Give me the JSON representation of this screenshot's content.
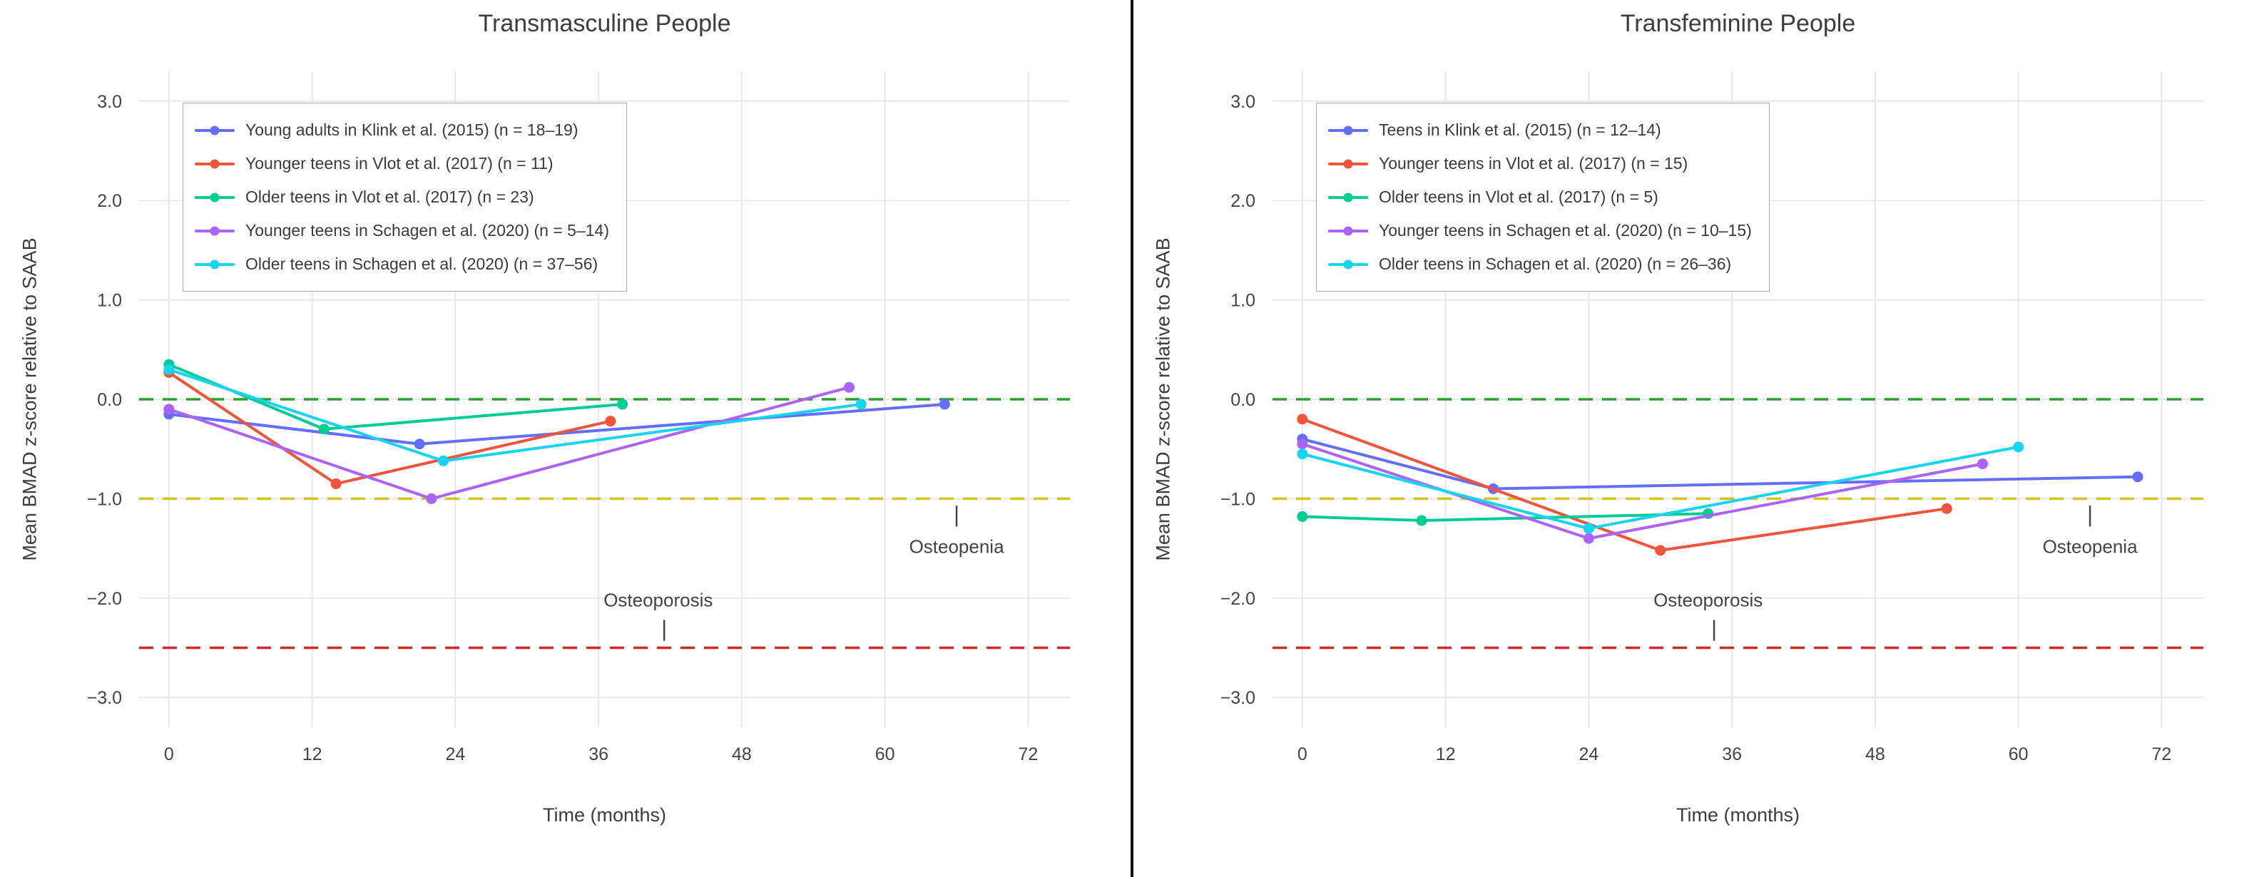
{
  "style": {
    "background": "#ffffff",
    "grid_color": "#e8e8e8",
    "text_color": "#444444",
    "legend_border_color": "#a9a9a9",
    "divider_color": "#111111"
  },
  "chart_data": [
    {
      "type": "line",
      "title": "Transmasculine People",
      "xlabel": "Time (months)",
      "ylabel": "Mean BMAD z-score relative to SAAB",
      "xlim": [
        -2.5,
        75.5
      ],
      "ylim": [
        -3.3,
        3.3
      ],
      "xticks": [
        0,
        12,
        24,
        36,
        48,
        60,
        72
      ],
      "yticks": [
        3,
        2,
        1,
        0,
        -1,
        -2,
        -3
      ],
      "ytick_labels": [
        "3.0",
        "2.0",
        "1.0",
        "0.0",
        "−1.0",
        "−2.0",
        "−3.0"
      ],
      "grid": true,
      "legend_position": "top-left",
      "reference_lines": [
        {
          "name": "saab-mean-line",
          "y": 0,
          "color": "#2ca02c"
        },
        {
          "name": "osteopenia-threshold-line",
          "y": -1,
          "color": "#d4c416"
        },
        {
          "name": "osteoporosis-threshold-line",
          "y": -2.5,
          "color": "#d62728"
        }
      ],
      "annotations": [
        {
          "text": "Osteopenia",
          "x": 66,
          "y": -1.48,
          "pointer": {
            "x": 66,
            "y1": -1.07,
            "y2": -1.28
          }
        },
        {
          "text": "Osteoporosis",
          "x": 41,
          "y": -2.02,
          "pointer": {
            "x": 41.5,
            "y1": -2.22,
            "y2": -2.43
          }
        }
      ],
      "series": [
        {
          "name": "Young adults in Klink et al. (2015) (n = 18–19)",
          "color": "#636efa",
          "x": [
            0,
            21,
            65
          ],
          "y": [
            -0.15,
            -0.45,
            -0.05
          ]
        },
        {
          "name": "Younger teens in Vlot et al. (2017) (n = 11)",
          "color": "#ef553b",
          "x": [
            0,
            14,
            37
          ],
          "y": [
            0.27,
            -0.85,
            -0.22
          ]
        },
        {
          "name": "Older teens in Vlot et al. (2017) (n = 23)",
          "color": "#00cc96",
          "x": [
            0,
            13,
            38
          ],
          "y": [
            0.35,
            -0.3,
            -0.05
          ]
        },
        {
          "name": "Younger teens in Schagen et al. (2020) (n = 5–14)",
          "color": "#ab63fa",
          "x": [
            0,
            22,
            57
          ],
          "y": [
            -0.1,
            -1.0,
            0.12
          ]
        },
        {
          "name": "Older teens in Schagen et al. (2020) (n = 37–56)",
          "color": "#19d3f3",
          "x": [
            0,
            23,
            58
          ],
          "y": [
            0.3,
            -0.62,
            -0.05
          ]
        }
      ]
    },
    {
      "type": "line",
      "title": "Transfeminine People",
      "xlabel": "Time (months)",
      "ylabel": "Mean BMAD z-score relative to SAAB",
      "xlim": [
        -2.5,
        75.5
      ],
      "ylim": [
        -3.3,
        3.3
      ],
      "xticks": [
        0,
        12,
        24,
        36,
        48,
        60,
        72
      ],
      "yticks": [
        3,
        2,
        1,
        0,
        -1,
        -2,
        -3
      ],
      "ytick_labels": [
        "3.0",
        "2.0",
        "1.0",
        "0.0",
        "−1.0",
        "−2.0",
        "−3.0"
      ],
      "grid": true,
      "legend_position": "top-left",
      "reference_lines": [
        {
          "name": "saab-mean-line",
          "y": 0,
          "color": "#2ca02c"
        },
        {
          "name": "osteopenia-threshold-line",
          "y": -1,
          "color": "#d4c416"
        },
        {
          "name": "osteoporosis-threshold-line",
          "y": -2.5,
          "color": "#d62728"
        }
      ],
      "annotations": [
        {
          "text": "Osteopenia",
          "x": 66,
          "y": -1.48,
          "pointer": {
            "x": 66,
            "y1": -1.07,
            "y2": -1.28
          }
        },
        {
          "text": "Osteoporosis",
          "x": 34,
          "y": -2.02,
          "pointer": {
            "x": 34.5,
            "y1": -2.22,
            "y2": -2.43
          }
        }
      ],
      "series": [
        {
          "name": "Teens in Klink et al. (2015) (n = 12–14)",
          "color": "#636efa",
          "x": [
            0,
            16,
            70
          ],
          "y": [
            -0.4,
            -0.9,
            -0.78
          ]
        },
        {
          "name": "Younger teens in Vlot et al. (2017) (n = 15)",
          "color": "#ef553b",
          "x": [
            0,
            30,
            54
          ],
          "y": [
            -0.2,
            -1.52,
            -1.1
          ]
        },
        {
          "name": "Older teens in Vlot et al. (2017) (n = 5)",
          "color": "#00cc96",
          "x": [
            0,
            10,
            34
          ],
          "y": [
            -1.18,
            -1.22,
            -1.15
          ]
        },
        {
          "name": "Younger teens in Schagen et al. (2020) (n = 10–15)",
          "color": "#ab63fa",
          "x": [
            0,
            24,
            57
          ],
          "y": [
            -0.45,
            -1.4,
            -0.65
          ]
        },
        {
          "name": "Older teens in Schagen et al. (2020) (n = 26–36)",
          "color": "#19d3f3",
          "x": [
            0,
            24,
            60
          ],
          "y": [
            -0.55,
            -1.3,
            -0.48
          ]
        }
      ]
    }
  ]
}
